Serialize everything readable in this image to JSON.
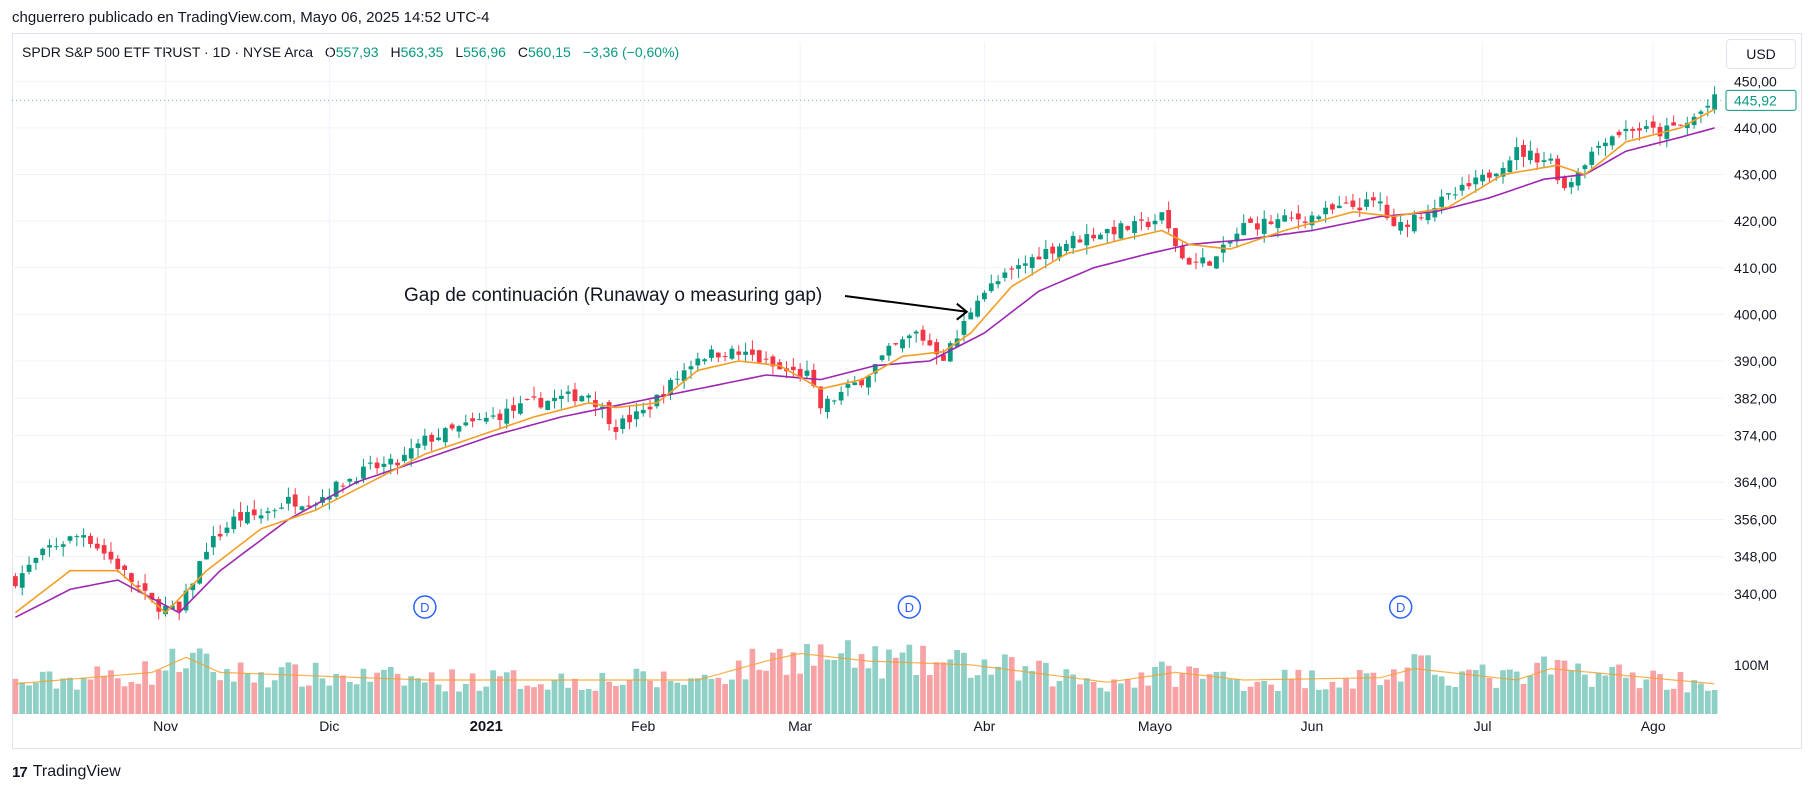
{
  "publisher_line": "chguerrero publicado en TradingView.com, Mayo 06, 2025 14:52 UTC-4",
  "legend": {
    "symbol": "SPDR S&P 500 ETF TRUST · 1D · NYSE Arca",
    "open_label": "O",
    "open": "557,93",
    "high_label": "H",
    "high": "563,35",
    "low_label": "L",
    "low": "556,96",
    "close_label": "C",
    "close": "560,15",
    "change": "−3,36 (−0,60%)"
  },
  "currency_button": "USD",
  "footer_brand": "TradingView",
  "footer_logo": "17",
  "colors": {
    "up": "#089981",
    "down": "#f23645",
    "ema_fast": "#f59d25",
    "ema_slow": "#9c27b0",
    "vol_up": "#8ecfc6",
    "vol_down": "#f7a3a6",
    "grid": "#f0f3fa",
    "dividend": "#2962ff"
  },
  "chart_data": {
    "type": "candlestick",
    "title": "SPDR S&P 500 ETF TRUST · 1D · NYSE Arca",
    "y_ticks": [
      "450,00",
      "440,00",
      "430,00",
      "420,00",
      "410,00",
      "400,00",
      "390,00",
      "382,00",
      "374,00",
      "364,00",
      "356,00",
      "348,00",
      "340,00"
    ],
    "y_tick_values": [
      450,
      440,
      430,
      420,
      410,
      400,
      390,
      382,
      374,
      364,
      356,
      348,
      340
    ],
    "ylim": [
      334,
      452
    ],
    "last_price": "445,92",
    "last_price_value": 445.92,
    "x_labels": [
      "Nov",
      "Dic",
      "2021",
      "Feb",
      "Mar",
      "Abr",
      "Mayo",
      "Jun",
      "Jul",
      "Ago"
    ],
    "x_label_start_index": [
      22,
      46,
      69,
      92,
      115,
      142,
      167,
      190,
      215,
      240
    ],
    "volume_label": "100M",
    "dividend_marker": "D",
    "dividend_bar_index": [
      60,
      131,
      203
    ],
    "annotation": "Gap de continuación (Runaway o measuring gap)",
    "annotation_target_index": 140,
    "num_bars": 250,
    "close_path": [
      [
        0,
        343
      ],
      [
        5,
        350
      ],
      [
        10,
        353
      ],
      [
        15,
        346
      ],
      [
        20,
        338
      ],
      [
        24,
        336
      ],
      [
        28,
        350
      ],
      [
        32,
        356
      ],
      [
        36,
        357
      ],
      [
        40,
        360
      ],
      [
        44,
        360
      ],
      [
        48,
        364
      ],
      [
        52,
        367
      ],
      [
        56,
        368
      ],
      [
        60,
        373
      ],
      [
        64,
        375
      ],
      [
        68,
        377
      ],
      [
        72,
        379
      ],
      [
        76,
        381
      ],
      [
        80,
        382
      ],
      [
        84,
        383
      ],
      [
        88,
        376
      ],
      [
        92,
        379
      ],
      [
        96,
        385
      ],
      [
        100,
        391
      ],
      [
        104,
        392
      ],
      [
        108,
        391
      ],
      [
        112,
        388
      ],
      [
        116,
        387
      ],
      [
        118,
        380
      ],
      [
        121,
        383
      ],
      [
        124,
        386
      ],
      [
        128,
        392
      ],
      [
        132,
        396
      ],
      [
        136,
        391
      ],
      [
        138,
        395
      ],
      [
        141,
        404
      ],
      [
        145,
        408
      ],
      [
        150,
        413
      ],
      [
        155,
        416
      ],
      [
        160,
        418
      ],
      [
        165,
        419
      ],
      [
        168,
        421
      ],
      [
        171,
        412
      ],
      [
        173,
        411
      ],
      [
        176,
        412
      ],
      [
        180,
        419
      ],
      [
        185,
        420
      ],
      [
        190,
        421
      ],
      [
        195,
        423
      ],
      [
        200,
        424
      ],
      [
        202,
        418
      ],
      [
        205,
        421
      ],
      [
        210,
        425
      ],
      [
        215,
        429
      ],
      [
        220,
        435
      ],
      [
        225,
        433
      ],
      [
        227,
        427
      ],
      [
        230,
        433
      ],
      [
        233,
        438
      ],
      [
        237,
        440
      ],
      [
        241,
        439
      ],
      [
        245,
        441
      ],
      [
        249,
        446
      ]
    ],
    "ema_fast_path": [
      [
        0,
        336
      ],
      [
        8,
        345
      ],
      [
        15,
        345
      ],
      [
        22,
        336
      ],
      [
        28,
        345
      ],
      [
        36,
        354
      ],
      [
        44,
        358
      ],
      [
        52,
        364
      ],
      [
        60,
        370
      ],
      [
        68,
        374
      ],
      [
        76,
        378
      ],
      [
        84,
        381
      ],
      [
        88,
        380
      ],
      [
        94,
        381
      ],
      [
        100,
        388
      ],
      [
        106,
        390
      ],
      [
        112,
        389
      ],
      [
        118,
        384
      ],
      [
        124,
        386
      ],
      [
        130,
        391
      ],
      [
        136,
        392
      ],
      [
        140,
        396
      ],
      [
        146,
        406
      ],
      [
        154,
        413
      ],
      [
        162,
        416
      ],
      [
        168,
        418
      ],
      [
        172,
        415
      ],
      [
        178,
        414
      ],
      [
        186,
        418
      ],
      [
        196,
        422
      ],
      [
        202,
        421
      ],
      [
        210,
        423
      ],
      [
        218,
        430
      ],
      [
        226,
        432
      ],
      [
        230,
        430
      ],
      [
        236,
        437
      ],
      [
        244,
        440
      ],
      [
        249,
        444
      ]
    ],
    "ema_slow_path": [
      [
        0,
        335
      ],
      [
        8,
        341
      ],
      [
        15,
        343
      ],
      [
        24,
        336
      ],
      [
        30,
        345
      ],
      [
        40,
        356
      ],
      [
        50,
        364
      ],
      [
        60,
        369
      ],
      [
        70,
        374
      ],
      [
        80,
        378
      ],
      [
        90,
        381
      ],
      [
        100,
        384
      ],
      [
        110,
        387
      ],
      [
        118,
        386
      ],
      [
        126,
        389
      ],
      [
        134,
        390
      ],
      [
        142,
        396
      ],
      [
        150,
        405
      ],
      [
        158,
        410
      ],
      [
        166,
        413
      ],
      [
        172,
        415
      ],
      [
        180,
        416
      ],
      [
        190,
        418
      ],
      [
        200,
        421
      ],
      [
        208,
        422
      ],
      [
        216,
        425
      ],
      [
        224,
        429
      ],
      [
        230,
        430
      ],
      [
        236,
        435
      ],
      [
        244,
        438
      ],
      [
        249,
        440
      ]
    ],
    "volume_path": [
      [
        0,
        40
      ],
      [
        20,
        55
      ],
      [
        25,
        75
      ],
      [
        30,
        55
      ],
      [
        60,
        45
      ],
      [
        100,
        45
      ],
      [
        110,
        70
      ],
      [
        115,
        80
      ],
      [
        125,
        70
      ],
      [
        140,
        65
      ],
      [
        160,
        42
      ],
      [
        170,
        55
      ],
      [
        180,
        45
      ],
      [
        200,
        48
      ],
      [
        205,
        60
      ],
      [
        220,
        45
      ],
      [
        225,
        60
      ],
      [
        249,
        40
      ]
    ],
    "volume_max": 100
  }
}
